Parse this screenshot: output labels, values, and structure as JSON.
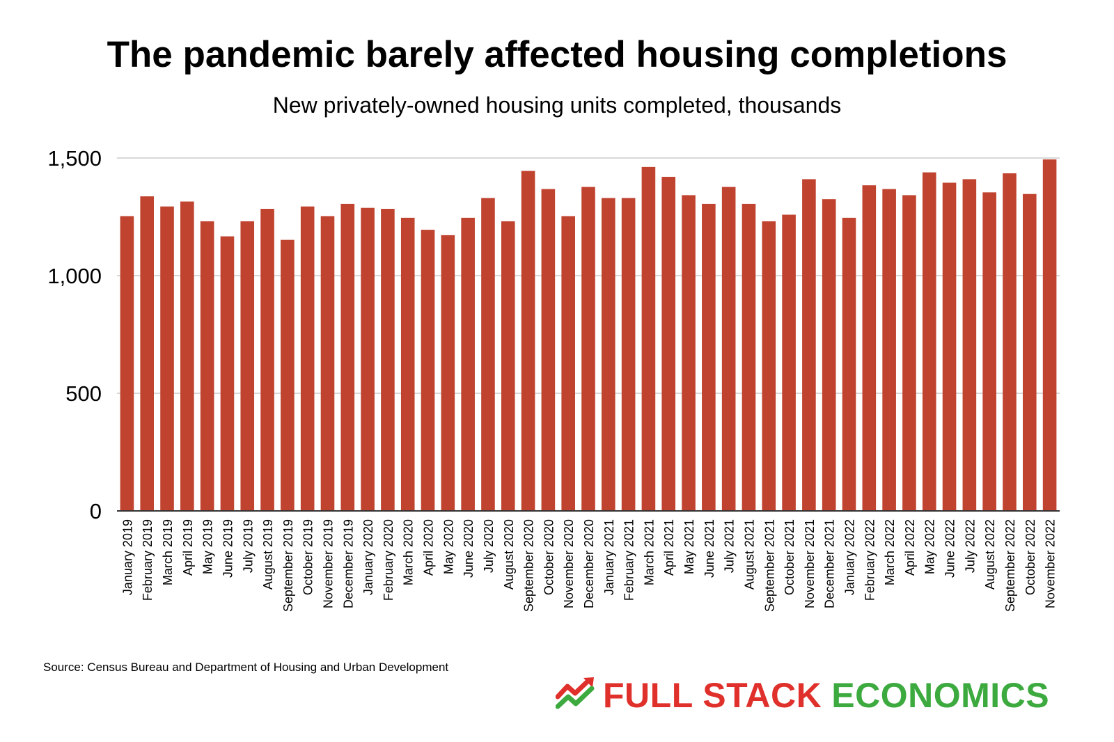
{
  "title": "The pandemic barely affected housing completions",
  "subtitle": "New privately-owned housing units completed, thousands",
  "source": "Source: Census Bureau and Department of Housing and Urban Development",
  "logo": {
    "word1": "FULL STACK",
    "word2": "ECONOMICS",
    "color1": "#E0302B",
    "color2": "#3DAA3F"
  },
  "chart_data": {
    "type": "bar",
    "bar_color": "#C0432F",
    "grid": true,
    "ylim": [
      0,
      1500
    ],
    "y_ticks": [
      0,
      500,
      1000,
      1500
    ],
    "y_tick_labels": [
      "0",
      "500",
      "1,000",
      "1,500"
    ],
    "categories": [
      "January 2019",
      "February 2019",
      "March 2019",
      "April 2019",
      "May 2019",
      "June 2019",
      "July 2019",
      "August 2019",
      "September 2019",
      "October 2019",
      "November 2019",
      "December 2019",
      "January 2020",
      "February 2020",
      "March 2020",
      "April 2020",
      "May 2020",
      "June 2020",
      "July 2020",
      "August 2020",
      "September 2020",
      "October 2020",
      "November 2020",
      "December 2020",
      "January 2021",
      "February 2021",
      "March 2021",
      "April 2021",
      "May 2021",
      "June 2021",
      "July 2021",
      "August 2021",
      "September 2021",
      "October 2021",
      "November 2021",
      "December 2021",
      "January 2022",
      "February 2022",
      "March 2022",
      "April 2022",
      "May 2022",
      "June 2022",
      "July 2022",
      "August 2022",
      "September 2022",
      "October 2022",
      "November 2022"
    ],
    "values": [
      1253,
      1337,
      1294,
      1315,
      1231,
      1167,
      1231,
      1284,
      1152,
      1294,
      1253,
      1305,
      1288,
      1284,
      1246,
      1195,
      1172,
      1246,
      1330,
      1231,
      1445,
      1368,
      1253,
      1377,
      1330,
      1330,
      1462,
      1420,
      1342,
      1305,
      1377,
      1305,
      1231,
      1259,
      1410,
      1325,
      1246,
      1384,
      1368,
      1342,
      1439,
      1395,
      1410,
      1354,
      1435,
      1347,
      1494
    ]
  }
}
